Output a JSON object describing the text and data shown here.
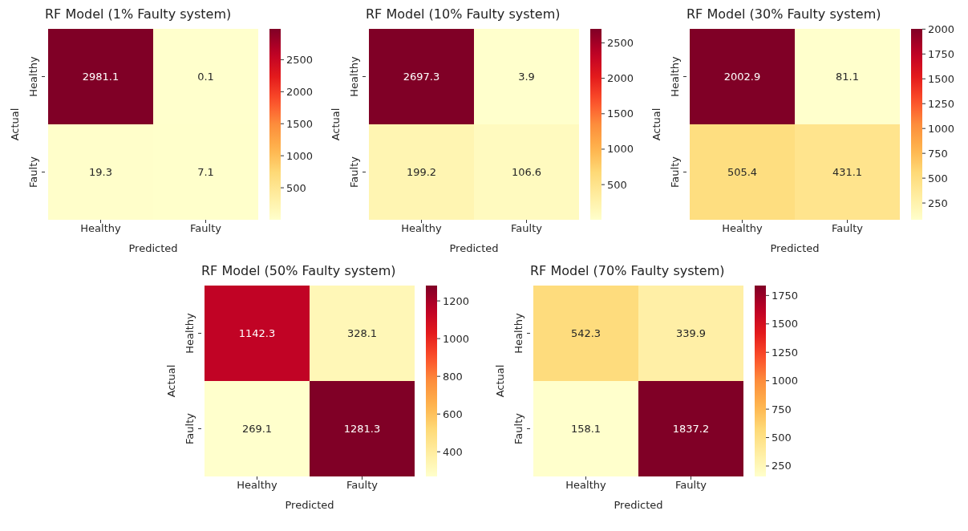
{
  "chart_data": [
    {
      "type": "heatmap",
      "title": "RF Model (1% Faulty system)",
      "xlabel": "Predicted",
      "ylabel": "Actual",
      "categories": [
        "Healthy",
        "Faulty"
      ],
      "y_categories": [
        "Healthy",
        "Faulty"
      ],
      "cells": [
        [
          2981.1,
          0.1
        ],
        [
          19.3,
          7.1
        ]
      ],
      "data_labels": true,
      "clim": [
        0.1,
        2981.1
      ],
      "cticks": [
        500,
        1000,
        1500,
        2000,
        2500
      ]
    },
    {
      "type": "heatmap",
      "title": "RF Model (10% Faulty system)",
      "xlabel": "Predicted",
      "ylabel": "Actual",
      "categories": [
        "Healthy",
        "Faulty"
      ],
      "y_categories": [
        "Healthy",
        "Faulty"
      ],
      "cells": [
        [
          2697.3,
          3.9
        ],
        [
          199.2,
          106.6
        ]
      ],
      "data_labels": true,
      "clim": [
        3.9,
        2697.3
      ],
      "cticks": [
        500,
        1000,
        1500,
        2000,
        2500
      ]
    },
    {
      "type": "heatmap",
      "title": "RF Model (30% Faulty system)",
      "xlabel": "Predicted",
      "ylabel": "Actual",
      "categories": [
        "Healthy",
        "Faulty"
      ],
      "y_categories": [
        "Healthy",
        "Faulty"
      ],
      "cells": [
        [
          2002.9,
          81.1
        ],
        [
          505.4,
          431.1
        ]
      ],
      "data_labels": true,
      "clim": [
        81.1,
        2002.9
      ],
      "cticks": [
        250,
        500,
        750,
        1000,
        1250,
        1500,
        1750,
        2000
      ]
    },
    {
      "type": "heatmap",
      "title": "RF Model (50% Faulty system)",
      "xlabel": "Predicted",
      "ylabel": "Actual",
      "categories": [
        "Healthy",
        "Faulty"
      ],
      "y_categories": [
        "Healthy",
        "Faulty"
      ],
      "cells": [
        [
          1142.3,
          328.1
        ],
        [
          269.1,
          1281.3
        ]
      ],
      "data_labels": true,
      "clim": [
        269.1,
        1281.3
      ],
      "cticks": [
        400,
        600,
        800,
        1000,
        1200
      ]
    },
    {
      "type": "heatmap",
      "title": "RF Model (70% Faulty system)",
      "xlabel": "Predicted",
      "ylabel": "Actual",
      "categories": [
        "Healthy",
        "Faulty"
      ],
      "y_categories": [
        "Healthy",
        "Faulty"
      ],
      "cells": [
        [
          542.3,
          339.9
        ],
        [
          158.1,
          1837.2
        ]
      ],
      "data_labels": true,
      "clim": [
        158.1,
        1837.2
      ],
      "cticks": [
        250,
        500,
        750,
        1000,
        1250,
        1500,
        1750
      ]
    }
  ]
}
